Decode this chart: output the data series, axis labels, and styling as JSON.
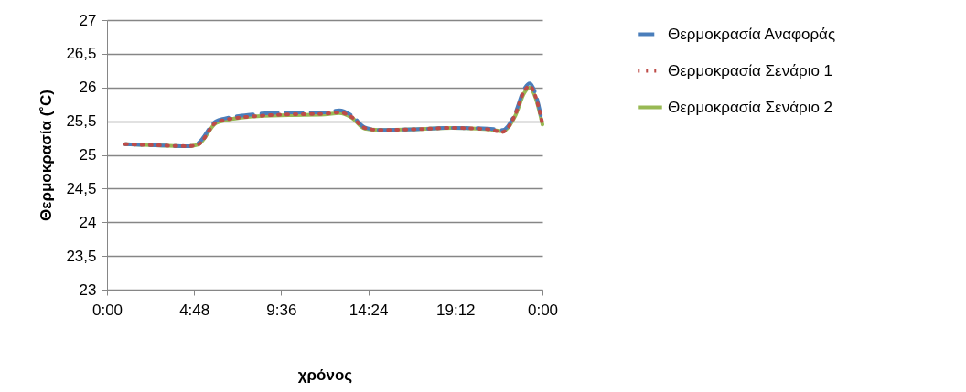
{
  "chart_data": {
    "type": "line",
    "xlabel": "χρόνος",
    "ylabel": "Θερμοκρασία (˚C)",
    "x": [
      1,
      3,
      4.5,
      5,
      6,
      6.5,
      8,
      10,
      12,
      12.8,
      13.5,
      14.2,
      15,
      17,
      19,
      21,
      21.8,
      22.5,
      23,
      23.3,
      23.6,
      24
    ],
    "series": [
      {
        "name": "Θερμοκρασία Αναφοράς",
        "color": "#4a7ebb",
        "line_style": "dashed",
        "values": [
          25.16,
          25.14,
          25.13,
          25.17,
          25.5,
          25.54,
          25.6,
          25.63,
          25.63,
          25.66,
          25.58,
          25.41,
          25.37,
          25.38,
          25.4,
          25.39,
          25.37,
          25.62,
          25.98,
          26.06,
          25.92,
          25.47
        ]
      },
      {
        "name": "Θερμοκρασία Σενάριο 1",
        "color": "#be4b48",
        "line_style": "dotted",
        "values": [
          25.16,
          25.14,
          25.13,
          25.15,
          25.48,
          25.52,
          25.57,
          25.6,
          25.61,
          25.63,
          25.56,
          25.4,
          25.37,
          25.38,
          25.4,
          25.38,
          25.34,
          25.6,
          25.95,
          26.02,
          25.88,
          25.46
        ]
      },
      {
        "name": "Θερμοκρασία Σενάριο 2",
        "color": "#98b954",
        "line_style": "solid",
        "values": [
          25.16,
          25.14,
          25.13,
          25.15,
          25.47,
          25.51,
          25.57,
          25.59,
          25.6,
          25.62,
          25.55,
          25.39,
          25.37,
          25.38,
          25.4,
          25.38,
          25.35,
          25.58,
          25.92,
          26.0,
          25.86,
          25.45
        ]
      }
    ],
    "xlim": [
      0,
      24
    ],
    "xticks": [
      {
        "value": 0,
        "label": "0:00"
      },
      {
        "value": 4.8,
        "label": "4:48"
      },
      {
        "value": 9.6,
        "label": "9:36"
      },
      {
        "value": 14.4,
        "label": "14:24"
      },
      {
        "value": 19.2,
        "label": "19:12"
      },
      {
        "value": 24,
        "label": "0:00"
      }
    ],
    "ylim": [
      23,
      27
    ],
    "yticks": [
      23,
      {
        "value": 23.5,
        "label": "23,5"
      },
      24,
      {
        "value": 24.5,
        "label": "24,5"
      },
      25,
      {
        "value": 25.5,
        "label": "25,5"
      },
      26,
      {
        "value": 26.5,
        "label": "26,5"
      },
      27
    ],
    "grid": "y",
    "legend": "right"
  }
}
